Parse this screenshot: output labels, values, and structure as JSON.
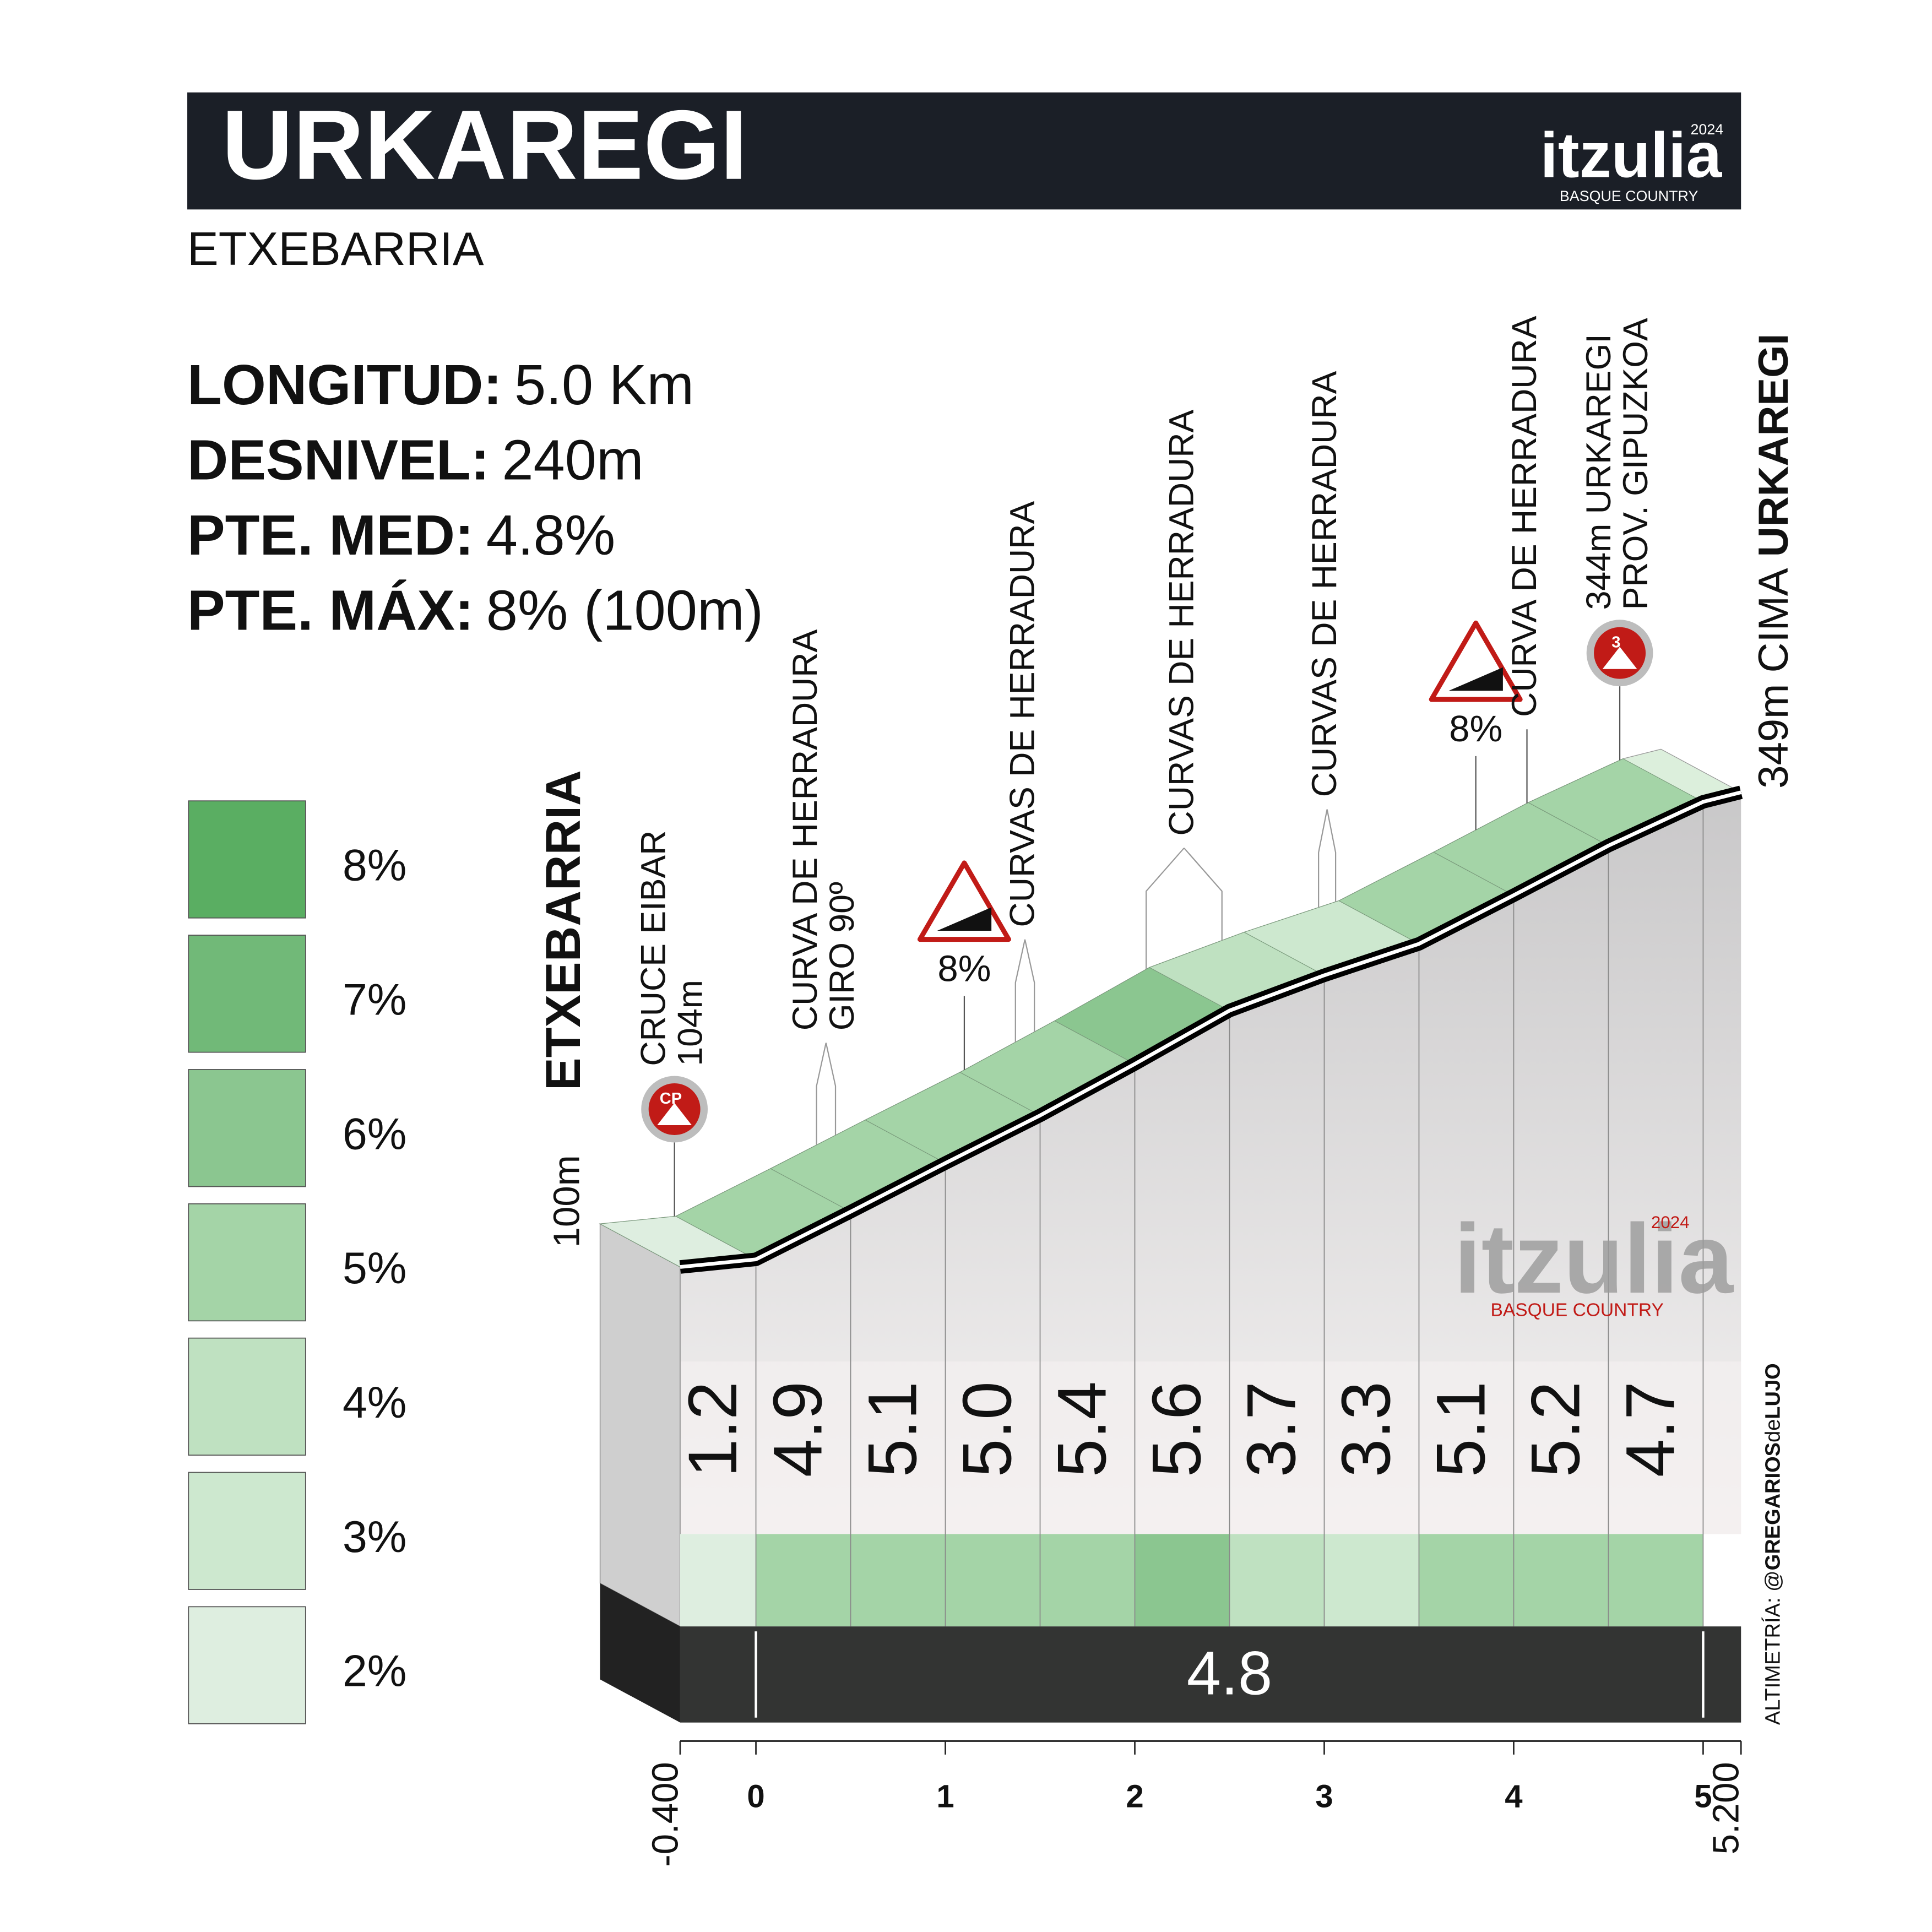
{
  "chart_data": {
    "type": "climb-profile",
    "title": "URKAREGI",
    "subtitle": "ETXEBARRIA",
    "logo": {
      "name": "itzulia",
      "year": "2024",
      "tagline": "BASQUE COUNTRY"
    },
    "stats": [
      {
        "label": "LONGITUD:",
        "value": "5.0 Km"
      },
      {
        "label": "DESNIVEL:",
        "value": "240m"
      },
      {
        "label": "PTE. MED:",
        "value": "4.8%"
      },
      {
        "label": "PTE. MÁX:",
        "value": "8% (100m)"
      }
    ],
    "legend": [
      {
        "value": 8,
        "label": "8%",
        "color": "#5aae62"
      },
      {
        "value": 7,
        "label": "7%",
        "color": "#71b978"
      },
      {
        "value": 6,
        "label": "6%",
        "color": "#8bc690"
      },
      {
        "value": 5,
        "label": "5%",
        "color": "#a4d4a7"
      },
      {
        "value": 4,
        "label": "4%",
        "color": "#bfe1c1"
      },
      {
        "value": 3,
        "label": "3%",
        "color": "#cde8cf"
      },
      {
        "value": 2,
        "label": "2%",
        "color": "#deeee0"
      }
    ],
    "segments": {
      "bins": [
        -0.4,
        0,
        0.5,
        1,
        1.5,
        2,
        2.5,
        3,
        3.5,
        4,
        4.5,
        5,
        5.2
      ],
      "values": [
        1.2,
        4.9,
        5.1,
        5.0,
        5.4,
        5.6,
        3.7,
        3.3,
        5.1,
        5.2,
        4.7,
        null
      ],
      "value_labels": [
        "1.2",
        "4.9",
        "5.1",
        "5.0",
        "5.4",
        "5.6",
        "3.7",
        "3.3",
        "5.1",
        "5.2",
        "4.7",
        null
      ]
    },
    "average": 4.8,
    "elevation": {
      "x": [
        -0.4,
        0,
        0.5,
        1,
        1.5,
        2,
        2.5,
        3,
        3.5,
        4,
        4.5,
        5,
        5.2
      ],
      "y": [
        100,
        104,
        129,
        154.5,
        179.5,
        206.5,
        234.5,
        253,
        269.5,
        295,
        321,
        344,
        349
      ]
    },
    "xlim": [
      -0.4,
      5.2
    ],
    "xticks": [
      {
        "value": -0.4,
        "label": "-0.400"
      },
      0,
      1,
      2,
      3,
      4,
      5,
      {
        "value": 5.2,
        "label": "5.200"
      }
    ],
    "ylim": [
      0,
      360
    ],
    "start": {
      "name": "ETXEBARRIA",
      "elevation": "100m"
    },
    "finish": {
      "elevation": "349m",
      "label": "CIMA",
      "name": "URKAREGI"
    },
    "annotations": [
      {
        "lines": [
          "CRUCE EIBAR",
          "104m"
        ],
        "x": [
          -0.43
        ],
        "icon": "cp",
        "icon_label": "CP"
      },
      {
        "lines": [
          "CURVA DE HERRADURA",
          "GIRO 90º"
        ],
        "x": [
          0.32,
          0.42
        ]
      },
      {
        "lines": [
          "8%"
        ],
        "x": [
          1.1
        ],
        "icon": "steep"
      },
      {
        "lines": [
          "CURVAS DE HERRADURA"
        ],
        "x": [
          1.37,
          1.47
        ]
      },
      {
        "lines": [
          "CURVAS DE HERRADURA"
        ],
        "x": [
          2.06,
          2.46
        ]
      },
      {
        "lines": [
          "CURVAS DE HERRADURA"
        ],
        "x": [
          2.97,
          3.06
        ]
      },
      {
        "lines": [
          "8%"
        ],
        "x": [
          3.8
        ],
        "icon": "steep"
      },
      {
        "lines": [
          "CURVA DE HERRADURA"
        ],
        "x": [
          4.07
        ]
      },
      {
        "lines": [
          "344m URKAREGI",
          "PROV. GIPUZKOA"
        ],
        "x": [
          4.56
        ],
        "icon": "cat",
        "icon_label": "3"
      }
    ],
    "credit": [
      "ALTIMETRÍA: @",
      "GREGARIOS",
      "de",
      "LUJO"
    ]
  }
}
